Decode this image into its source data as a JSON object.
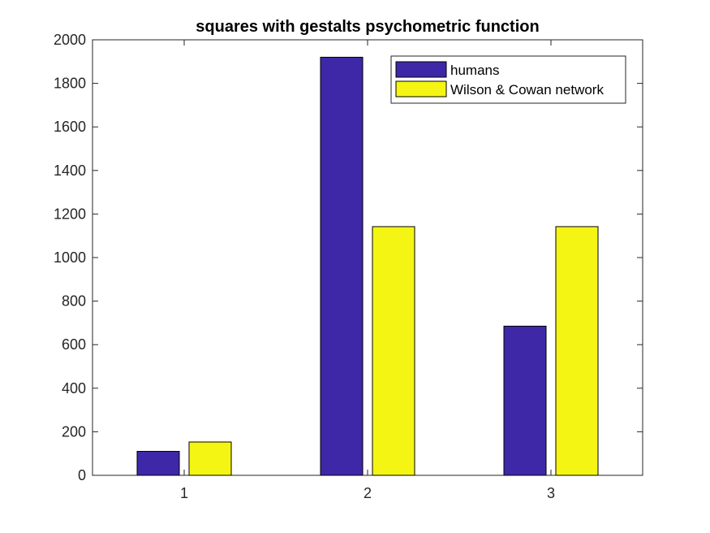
{
  "chart_data": {
    "type": "bar",
    "title": "squares with gestalts psychometric function",
    "xlabel": "",
    "ylabel": "",
    "categories": [
      "1",
      "2",
      "3"
    ],
    "series": [
      {
        "name": "humans",
        "values": [
          110,
          1920,
          685
        ],
        "color": "#3e28a8"
      },
      {
        "name": "Wilson & Cowan network",
        "values": [
          153,
          1142,
          1142
        ],
        "color": "#f5f514"
      }
    ],
    "ylim": [
      0,
      2000
    ],
    "yticks": [
      0,
      200,
      400,
      600,
      800,
      1000,
      1200,
      1400,
      1600,
      1800,
      2000
    ],
    "grid": false,
    "legend_position": "top-right"
  }
}
